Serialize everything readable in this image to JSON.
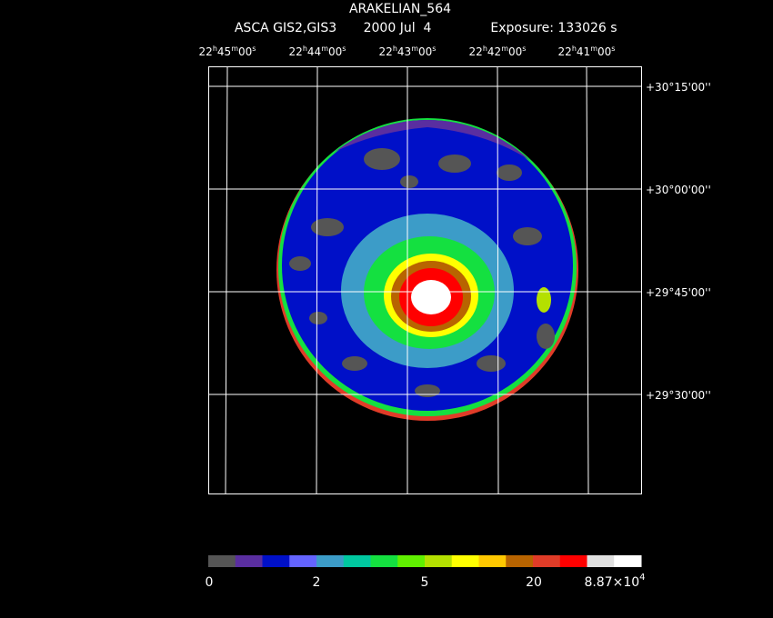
{
  "header": {
    "title": "ARAKELIAN_564",
    "instrument": "ASCA GIS2,GIS3",
    "date": "2000 Jul  4",
    "exposure": "Exposure: 133026 s"
  },
  "ra_labels": [
    [
      "22",
      "h",
      "45",
      "m",
      "00",
      "s"
    ],
    [
      "22",
      "h",
      "44",
      "m",
      "00",
      "s"
    ],
    [
      "22",
      "h",
      "43",
      "m",
      "00",
      "s"
    ],
    [
      "22",
      "h",
      "42",
      "m",
      "00",
      "s"
    ],
    [
      "22",
      "h",
      "41",
      "m",
      "00",
      "s"
    ]
  ],
  "dec_labels": [
    "+30°15'00''",
    "+30°00'00''",
    "+29°45'00''",
    "+29°30'00''"
  ],
  "colorbar": {
    "colors": [
      "#555555",
      "#5a2ea0",
      "#0010c8",
      "#6464ff",
      "#3c9cc8",
      "#00c8a0",
      "#14e040",
      "#60f000",
      "#b4e000",
      "#ffff00",
      "#ffc800",
      "#b86400",
      "#e03c28",
      "#ff0000",
      "#e0e0e0",
      "#ffffff"
    ],
    "labels": [
      "0",
      "2",
      "5",
      "20",
      {
        "mantissa": "8.87×10",
        "exponent": "4"
      }
    ]
  }
}
